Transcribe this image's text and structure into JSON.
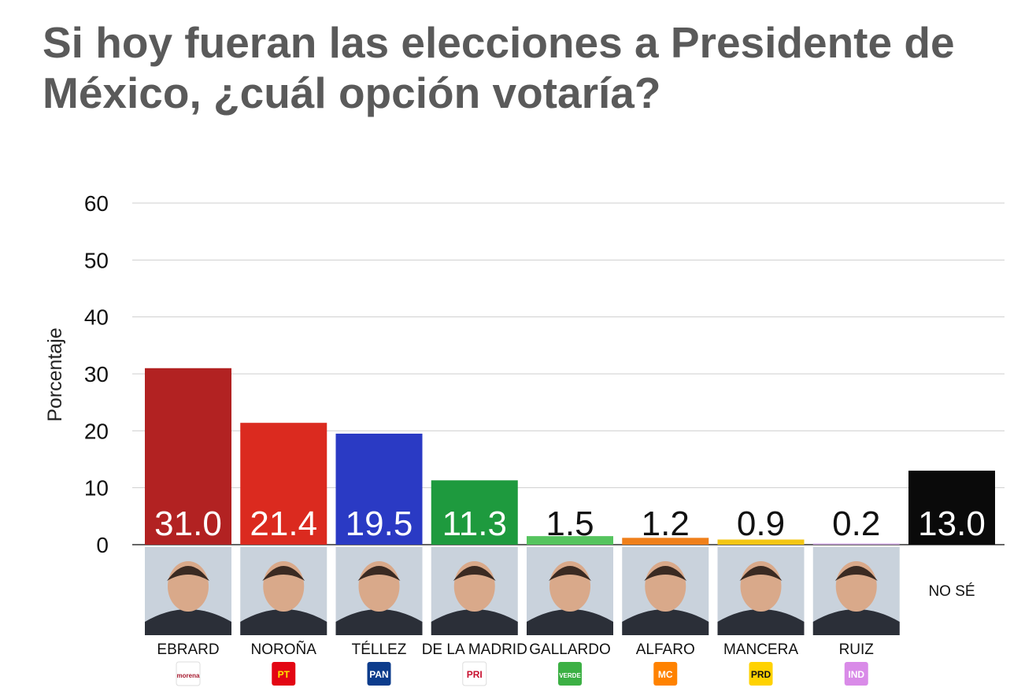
{
  "title": "Si hoy fueran las elecciones a Presidente de México, ¿cuál opción votaría?",
  "chart_data": {
    "type": "bar",
    "title": "Si hoy fueran las elecciones a Presidente de México, ¿cuál opción votaría?",
    "xlabel": "",
    "ylabel": "Porcentaje",
    "ylim": [
      0,
      60
    ],
    "yticks": [
      0,
      10,
      20,
      30,
      40,
      50,
      60
    ],
    "grid": true,
    "legend": "none",
    "categories": [
      "EBRARD",
      "NOROÑA",
      "TÉLLEZ",
      "DE LA MADRID",
      "GALLARDO",
      "ALFARO",
      "MANCERA",
      "RUIZ",
      "NO SÉ"
    ],
    "values": [
      31.0,
      21.4,
      19.5,
      11.3,
      1.5,
      1.2,
      0.9,
      0.2,
      13.0
    ],
    "value_labels": [
      "31.0",
      "21.4",
      "19.5",
      "11.3",
      "1.5",
      "1.2",
      "0.9",
      "0.2",
      "13.0"
    ],
    "colors": [
      "#b22222",
      "#db2a1f",
      "#2a3ac4",
      "#1e9a3e",
      "#55c45e",
      "#ef7f1a",
      "#f3c614",
      "#c9a0dc",
      "#0a0a0a"
    ],
    "parties": [
      "morena",
      "PT",
      "PAN",
      "PRI",
      "VERDE",
      "MC",
      "PRD",
      "IND",
      ""
    ],
    "party_colors": [
      "#ffffff",
      "#e30613",
      "#0c3c8c",
      "#ffffff",
      "#3cb044",
      "#ff8200",
      "#ffd200",
      "#d98be8",
      ""
    ],
    "party_text_colors": [
      "#a6192e",
      "#ffe600",
      "#ffffff",
      "#c8102e",
      "#ffffff",
      "#ffffff",
      "#111111",
      "#ffffff",
      ""
    ]
  }
}
